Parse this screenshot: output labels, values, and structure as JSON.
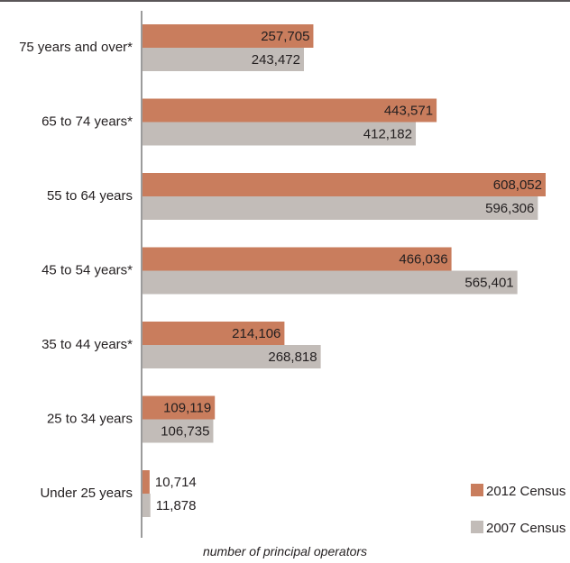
{
  "chart_data": {
    "type": "bar",
    "orientation": "horizontal",
    "categories": [
      "75 years and over*",
      "65 to 74 years*",
      "55 to 64 years",
      "45 to 54 years*",
      "35 to 44 years*",
      "25 to 34 years",
      "Under 25 years"
    ],
    "series": [
      {
        "name": "2012 Census",
        "color": "#c97d5d",
        "values": [
          257705,
          443571,
          608052,
          466036,
          214106,
          109119,
          10714
        ],
        "labels": [
          "257,705",
          "443,571",
          "608,052",
          "466,036",
          "214,106",
          "109,119",
          "10,714"
        ]
      },
      {
        "name": "2007 Census",
        "color": "#c2bcb8",
        "values": [
          243472,
          412182,
          596306,
          565401,
          268818,
          106735,
          11878
        ],
        "labels": [
          "243,472",
          "412,182",
          "596,306",
          "565,401",
          "268,818",
          "106,735",
          "11,878"
        ]
      }
    ],
    "xlabel": "number of principal operators",
    "xlim": [
      0,
      630000
    ],
    "grid": false,
    "legend_position": "bottom-right"
  }
}
